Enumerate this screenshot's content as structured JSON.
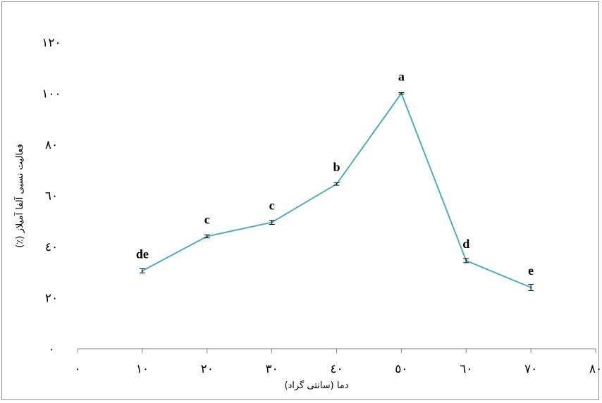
{
  "chart_data": {
    "type": "line",
    "xlabel": "دما (سانتی گراد)",
    "ylabel": "فعالیت نسبی آلفا آمیلاز (٪)",
    "xlim": [
      0,
      80
    ],
    "ylim": [
      0,
      120
    ],
    "x_ticks": [
      0,
      10,
      20,
      30,
      40,
      50,
      60,
      70,
      80
    ],
    "y_ticks": [
      0,
      20,
      40,
      60,
      80,
      100,
      120
    ],
    "x_tick_labels": [
      "٠",
      "١٠",
      "٢٠",
      "٣٠",
      "٤٠",
      "٥٠",
      "٦٠",
      "٧٠",
      "٨٠"
    ],
    "y_tick_labels": [
      "٠",
      "٢٠",
      "٤٠",
      "٦٠",
      "٨٠",
      "١٠٠",
      "١٢٠"
    ],
    "grid": false,
    "line_color": "#4bacc6",
    "series": [
      {
        "x": [
          10,
          20,
          30,
          40,
          50,
          60,
          70
        ],
        "values": [
          30.5,
          44,
          49.5,
          64.5,
          100,
          34.5,
          24
        ],
        "errors": [
          0.8,
          0.6,
          0.8,
          0.5,
          0.3,
          0.8,
          1.2
        ],
        "labels": [
          "de",
          "c",
          "c",
          "b",
          "a",
          "d",
          "e"
        ]
      }
    ]
  }
}
